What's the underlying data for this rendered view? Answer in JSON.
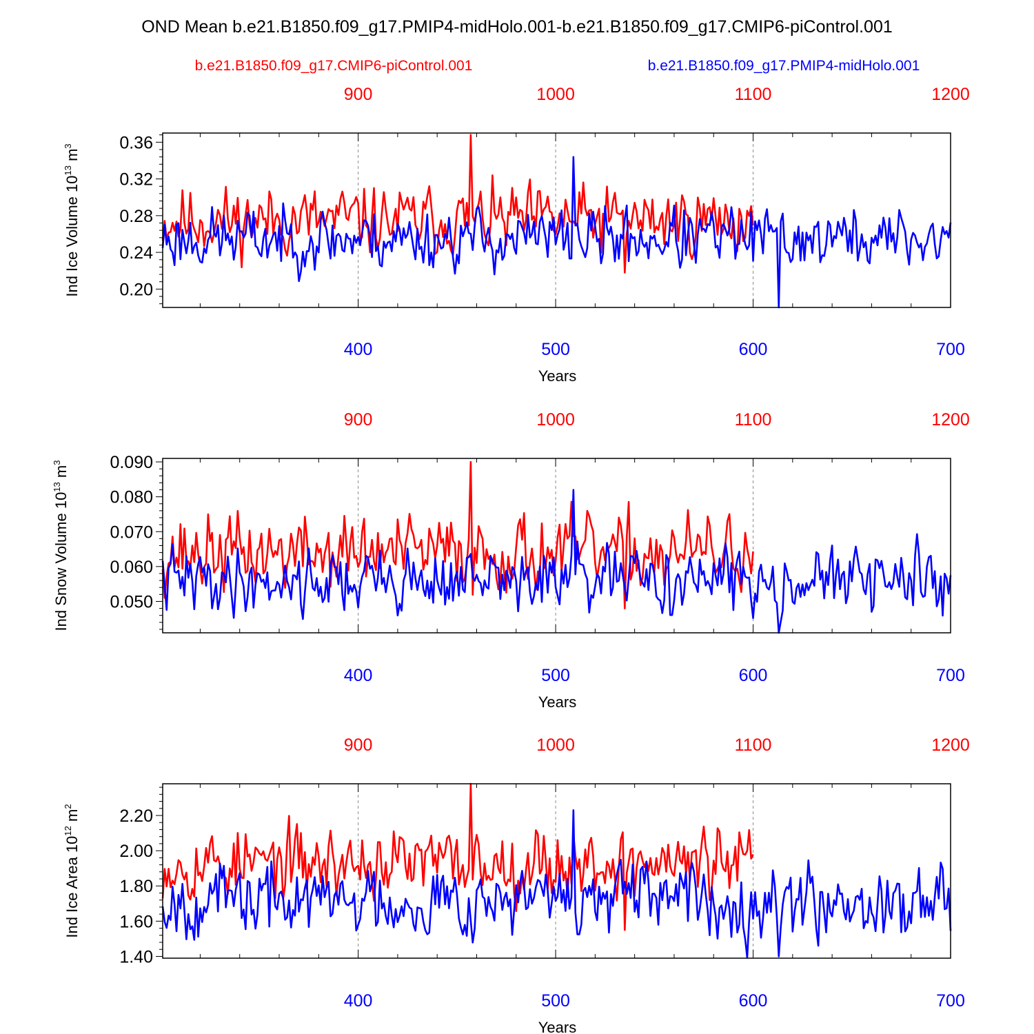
{
  "colors": {
    "control": "#ff0000",
    "midholo": "#0000ff",
    "axis": "#000000",
    "grid": "#888888"
  },
  "chart_data": {
    "title": "OND Mean b.e21.B1850.f09_g17.PMIP4-midHolo.001-b.e21.B1850.f09_g17.CMIP6-piControl.001",
    "legend": {
      "control": "b.e21.B1850.f09_g17.CMIP6-piControl.001",
      "midholo": "b.e21.B1850.f09_g17.PMIP4-midHolo.001"
    },
    "x_bottom": {
      "label": "Years",
      "ticks": [
        "400",
        "500",
        "600",
        "700"
      ],
      "range": [
        301,
        700
      ],
      "color": "blue"
    },
    "x_top": {
      "ticks": [
        "900",
        "1000",
        "1100",
        "1200"
      ],
      "range": [
        801,
        1200
      ],
      "color": "red"
    },
    "grid": "vertical dashed at 400, 500, 600",
    "panels": [
      {
        "type": "line",
        "ylabel": "Ind Ice Volume 10",
        "ylabel_exp": "13",
        "ylabel_unit": " m",
        "ylabel_unit_exp": "3",
        "ylim": [
          0.18,
          0.37
        ],
        "yticks": [
          "0.20",
          "0.24",
          "0.28",
          "0.32",
          "0.36"
        ],
        "yticks_values": [
          0.2,
          0.24,
          0.28,
          0.32,
          0.36
        ],
        "series": [
          {
            "name": "b.e21.B1850.f09_g17.CMIP6-piControl.001",
            "color": "red",
            "x_start": 801,
            "x_end": 1100,
            "base": 0.275,
            "amp": 0.022,
            "seed": 11,
            "max": 0.368,
            "min": 0.218
          },
          {
            "name": "b.e21.B1850.f09_g17.PMIP4-midHolo.001",
            "color": "blue",
            "x_start": 301,
            "x_end": 700,
            "base": 0.255,
            "amp": 0.02,
            "seed": 23,
            "max": 0.344,
            "min": 0.18
          }
        ]
      },
      {
        "type": "line",
        "ylabel": "Ind Snow Volume 10",
        "ylabel_exp": "13",
        "ylabel_unit": " m",
        "ylabel_unit_exp": "3",
        "ylim": [
          0.041,
          0.091
        ],
        "yticks": [
          "0.050",
          "0.060",
          "0.070",
          "0.080",
          "0.090"
        ],
        "yticks_values": [
          0.05,
          0.06,
          0.07,
          0.08,
          0.09
        ],
        "series": [
          {
            "name": "b.e21.B1850.f09_g17.CMIP6-piControl.001",
            "color": "red",
            "x_start": 801,
            "x_end": 1100,
            "base": 0.064,
            "amp": 0.0065,
            "seed": 37,
            "max": 0.09,
            "min": 0.048
          },
          {
            "name": "b.e21.B1850.f09_g17.PMIP4-midHolo.001",
            "color": "blue",
            "x_start": 301,
            "x_end": 700,
            "base": 0.056,
            "amp": 0.0055,
            "seed": 41,
            "max": 0.082,
            "min": 0.041
          }
        ]
      },
      {
        "type": "line",
        "ylabel": "Ind Ice Area 10",
        "ylabel_exp": "12",
        "ylabel_unit": " m",
        "ylabel_unit_exp": "2",
        "ylim": [
          1.39,
          2.38
        ],
        "yticks": [
          "1.40",
          "1.60",
          "1.80",
          "2.00",
          "2.20"
        ],
        "yticks_values": [
          1.4,
          1.6,
          1.8,
          2.0,
          2.2
        ],
        "series": [
          {
            "name": "b.e21.B1850.f09_g17.CMIP6-piControl.001",
            "color": "red",
            "x_start": 801,
            "x_end": 1100,
            "base": 1.93,
            "amp": 0.12,
            "seed": 53,
            "max": 2.38,
            "min": 1.55
          },
          {
            "name": "b.e21.B1850.f09_g17.PMIP4-midHolo.001",
            "color": "blue",
            "x_start": 301,
            "x_end": 700,
            "base": 1.72,
            "amp": 0.12,
            "seed": 67,
            "max": 2.23,
            "min": 1.4
          }
        ]
      }
    ]
  }
}
